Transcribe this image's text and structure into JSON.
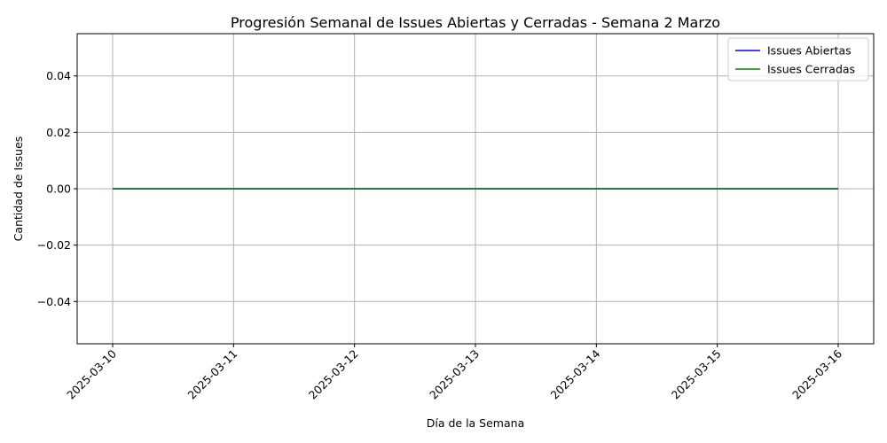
{
  "chart_data": {
    "type": "line",
    "title": "Progresión Semanal de Issues Abiertas y Cerradas - Semana 2 Marzo",
    "xlabel": "Día de la Semana",
    "ylabel": "Cantidad de Issues",
    "x": [
      "2025-03-10",
      "2025-03-11",
      "2025-03-12",
      "2025-03-13",
      "2025-03-14",
      "2025-03-15",
      "2025-03-16"
    ],
    "ylim": [
      -0.055,
      0.055
    ],
    "yticks": [
      -0.04,
      -0.02,
      0.0,
      0.02,
      0.04
    ],
    "ytick_labels": [
      "−0.04",
      "−0.02",
      "0.00",
      "0.02",
      "0.04"
    ],
    "grid": true,
    "legend_position": "top-right",
    "series": [
      {
        "name": "Issues Abiertas",
        "color": "#0000ff",
        "values": [
          0,
          0,
          0,
          0,
          0,
          0,
          0
        ]
      },
      {
        "name": "Issues Cerradas",
        "color": "#008000",
        "values": [
          0,
          0,
          0,
          0,
          0,
          0,
          0
        ]
      }
    ]
  }
}
